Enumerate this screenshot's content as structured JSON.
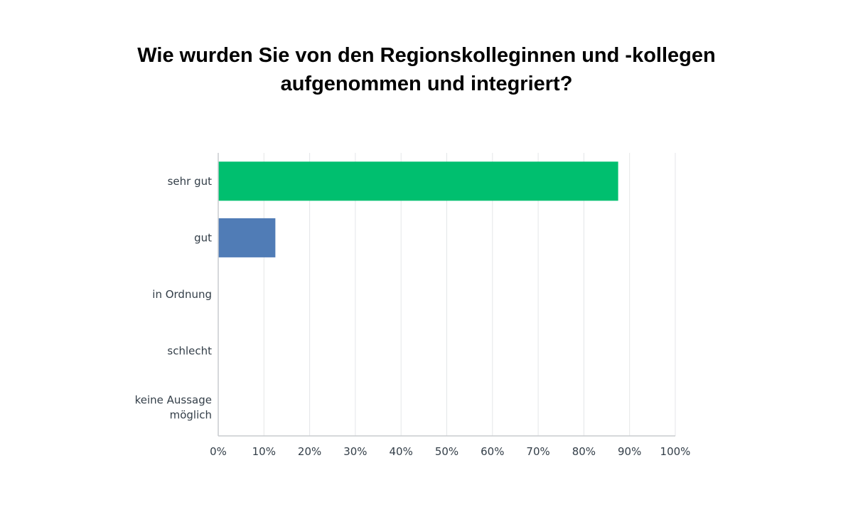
{
  "chart_data": {
    "type": "bar",
    "orientation": "horizontal",
    "title": "Wie wurden Sie von den Regionskolleginnen und -kollegen aufgenommen und integriert?",
    "categories": [
      "sehr gut",
      "gut",
      "in Ordnung",
      "schlecht",
      "keine Aussage möglich"
    ],
    "category_lines": [
      [
        "sehr gut"
      ],
      [
        "gut"
      ],
      [
        "in Ordnung"
      ],
      [
        "schlecht"
      ],
      [
        "keine Aussage",
        "möglich"
      ]
    ],
    "values": [
      87.5,
      12.5,
      0,
      0,
      0
    ],
    "colors": [
      "#00bf6f",
      "#507cb6",
      "#507cb6",
      "#507cb6",
      "#507cb6"
    ],
    "xlim": [
      0,
      100
    ],
    "xticks": [
      "0%",
      "10%",
      "20%",
      "30%",
      "40%",
      "50%",
      "60%",
      "70%",
      "80%",
      "90%",
      "100%"
    ],
    "grid": true,
    "legend": "none"
  }
}
